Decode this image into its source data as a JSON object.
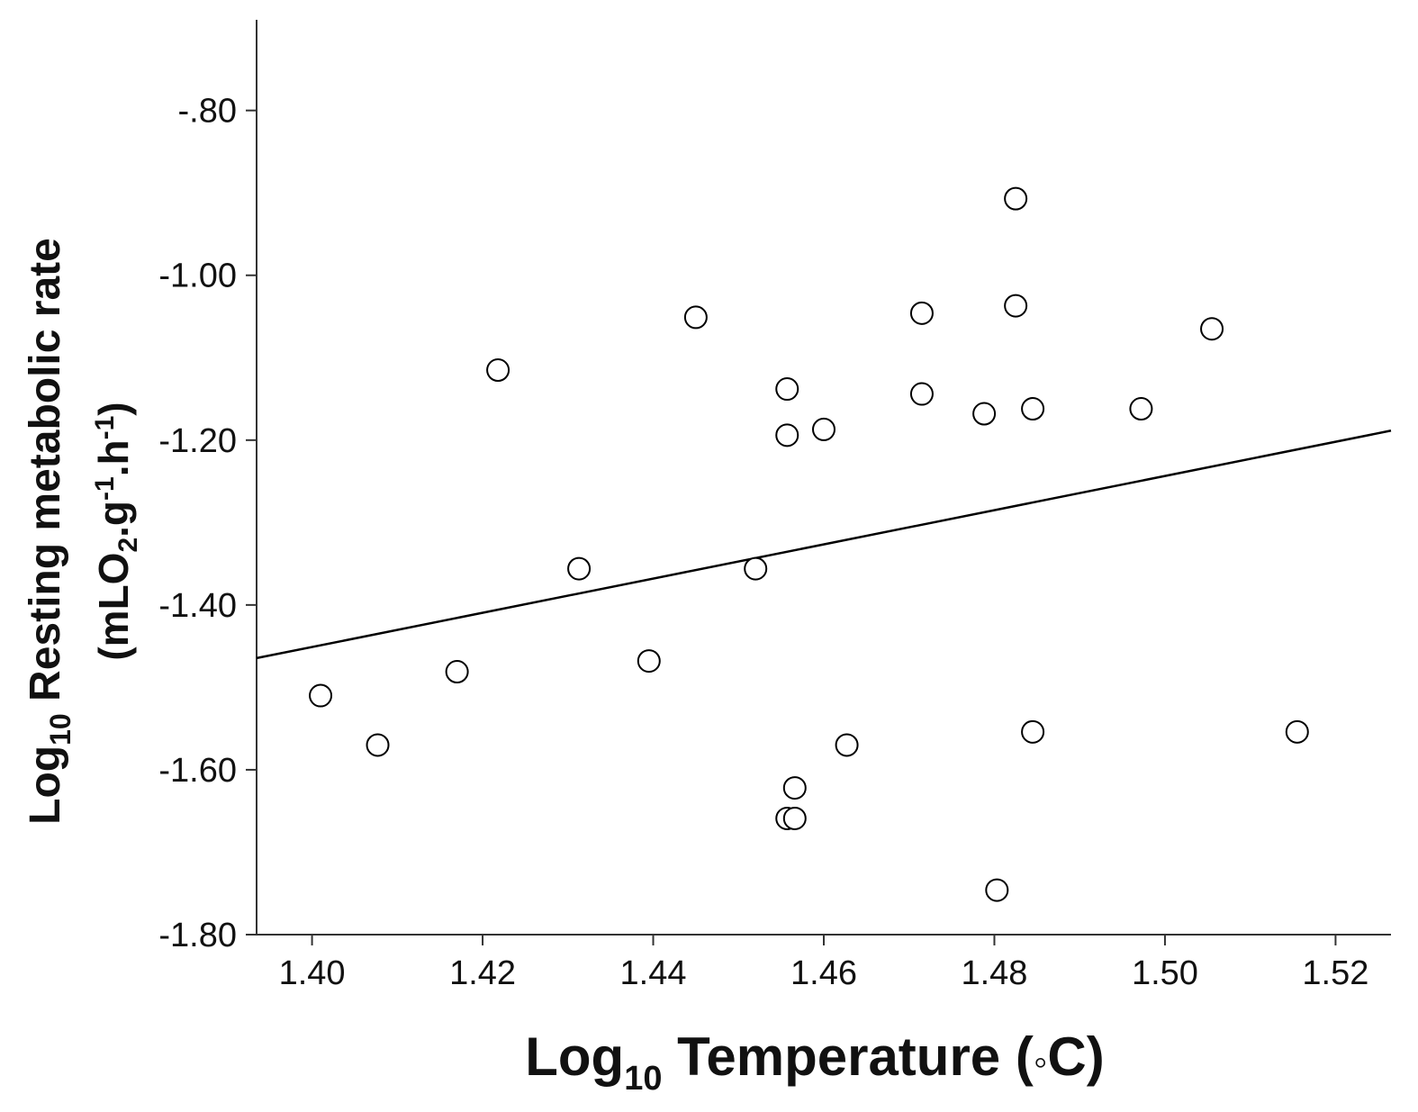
{
  "chart_data": {
    "type": "scatter",
    "title": "",
    "xlabel": {
      "prefix": "Log",
      "subscript": "10",
      "main": " Temperature (",
      "symbol": "◦",
      "suffix": "C)"
    },
    "ylabel": {
      "line1_prefix": "Log",
      "line1_subscript": "10",
      "line1_main": " Resting metabolic rate",
      "line2_parts": [
        "(mLO",
        "2",
        ".g",
        "-1",
        ".h",
        "-1",
        ")"
      ]
    },
    "xlim": [
      1.3935,
      1.5265
    ],
    "ylim": [
      -1.8,
      -0.69
    ],
    "x_ticks": [
      1.4,
      1.42,
      1.44,
      1.46,
      1.48,
      1.5,
      1.52
    ],
    "x_tick_labels": [
      "1.40",
      "1.42",
      "1.44",
      "1.46",
      "1.48",
      "1.50",
      "1.52"
    ],
    "y_ticks": [
      -0.8,
      -1.0,
      -1.2,
      -1.4,
      -1.6,
      -1.8
    ],
    "y_tick_labels": [
      "-.80",
      "-1.00",
      "-1.20",
      "-1.40",
      "-1.60",
      "-1.80"
    ],
    "grid": false,
    "legend": "none",
    "marker": "open circle",
    "colors": {
      "marker_stroke": "#000000",
      "marker_fill": "#ffffff",
      "line": "#000000",
      "axis": "#333333"
    },
    "points": [
      {
        "x": 1.401,
        "y": -1.51
      },
      {
        "x": 1.4077,
        "y": -1.57
      },
      {
        "x": 1.417,
        "y": -1.481
      },
      {
        "x": 1.4218,
        "y": -1.115
      },
      {
        "x": 1.4313,
        "y": -1.356
      },
      {
        "x": 1.4395,
        "y": -1.468
      },
      {
        "x": 1.445,
        "y": -1.051
      },
      {
        "x": 1.452,
        "y": -1.356
      },
      {
        "x": 1.4557,
        "y": -1.138
      },
      {
        "x": 1.4557,
        "y": -1.194
      },
      {
        "x": 1.4566,
        "y": -1.622
      },
      {
        "x": 1.4557,
        "y": -1.659
      },
      {
        "x": 1.4566,
        "y": -1.659
      },
      {
        "x": 1.46,
        "y": -1.187
      },
      {
        "x": 1.4627,
        "y": -1.57
      },
      {
        "x": 1.4715,
        "y": -1.046
      },
      {
        "x": 1.4715,
        "y": -1.144
      },
      {
        "x": 1.4788,
        "y": -1.168
      },
      {
        "x": 1.4803,
        "y": -1.746
      },
      {
        "x": 1.4825,
        "y": -0.907
      },
      {
        "x": 1.4825,
        "y": -1.037
      },
      {
        "x": 1.4845,
        "y": -1.162
      },
      {
        "x": 1.4845,
        "y": -1.554
      },
      {
        "x": 1.4972,
        "y": -1.162
      },
      {
        "x": 1.5055,
        "y": -1.065
      },
      {
        "x": 1.5155,
        "y": -1.554
      }
    ],
    "fit_line": {
      "x": [
        1.3935,
        1.5265
      ],
      "y": [
        -1.4645,
        -1.1885
      ]
    }
  }
}
